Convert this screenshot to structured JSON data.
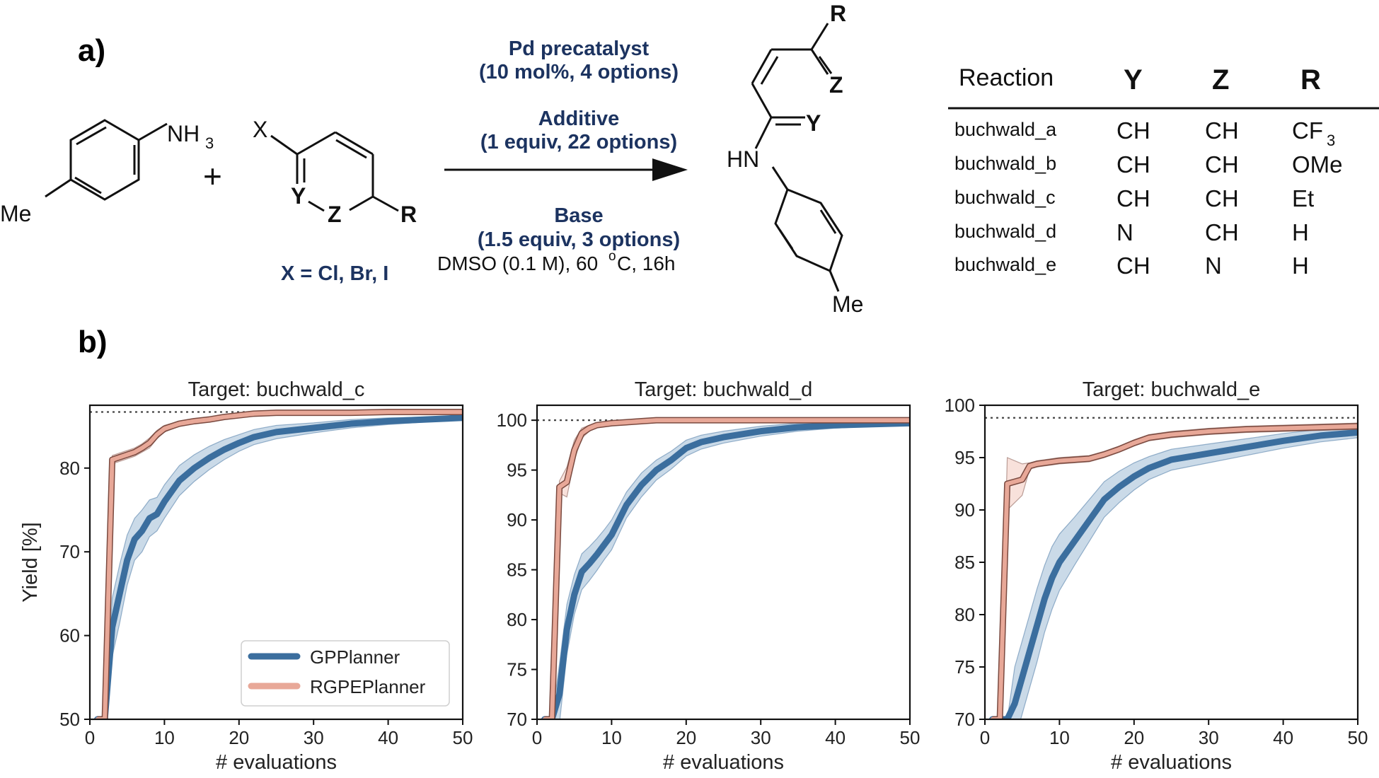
{
  "panel_a": {
    "label": "a)",
    "reactant_amine": {
      "me": "Me",
      "nh3": "NH",
      "nh3_sub": "3"
    },
    "plus": "+",
    "reactant_halide": {
      "x": "X",
      "y": "Y",
      "z": "Z",
      "r": "R",
      "note": "X = Cl, Br, I"
    },
    "conditions": {
      "pd_title": "Pd precatalyst",
      "pd_detail": "(10 mol%, 4 options)",
      "additive_title": "Additive",
      "additive_detail": "(1 equiv, 22 options)",
      "base_title": "Base",
      "base_detail": "(1.5 equiv, 3 options)",
      "solvent_pre": "DMSO (0.1 M), 60 ",
      "solvent_sup": "o",
      "solvent_post": "C, 16h"
    },
    "product": {
      "r": "R",
      "z": "Z",
      "y": "Y",
      "hn": "HN",
      "me": "Me"
    },
    "table": {
      "headers": [
        "Reaction",
        "Y",
        "Z",
        "R"
      ],
      "rows": [
        {
          "name": "buchwald_a",
          "y": "CH",
          "z": "CH",
          "r": "CF",
          "r_sub": "3"
        },
        {
          "name": "buchwald_b",
          "y": "CH",
          "z": "CH",
          "r": "OMe",
          "r_sub": ""
        },
        {
          "name": "buchwald_c",
          "y": "CH",
          "z": "CH",
          "r": "Et",
          "r_sub": ""
        },
        {
          "name": "buchwald_d",
          "y": "N",
          "z": "CH",
          "r": "H",
          "r_sub": ""
        },
        {
          "name": "buchwald_e",
          "y": "CH",
          "z": "N",
          "r": "H",
          "r_sub": ""
        }
      ]
    }
  },
  "panel_b": {
    "label": "b)",
    "legend": [
      {
        "name": "GPPlanner",
        "color": "#3b6e9e"
      },
      {
        "name": "RGPEPlanner",
        "color": "#e8a898"
      }
    ],
    "colors": {
      "gp": "#3b6e9e",
      "gp_band": "#9fbcd6",
      "rg_fill": "#e8a898",
      "rg_edge": "#7a4a40",
      "rg_band": "#f2c8be"
    }
  },
  "chart_data": [
    {
      "type": "line",
      "title": "Target: buchwald_c",
      "xlabel": "# evaluations",
      "ylabel": "Yield [%]",
      "xlim": [
        0,
        50
      ],
      "ylim": [
        50,
        87.5
      ],
      "xticks": [
        0,
        10,
        20,
        30,
        40,
        50
      ],
      "yticks": [
        50,
        60,
        70,
        80
      ],
      "best_yield_line": 86.7,
      "legend_placement": "lower-right",
      "x": [
        1,
        2,
        3,
        4,
        5,
        6,
        7,
        8,
        9,
        10,
        12,
        14,
        16,
        18,
        20,
        22,
        25,
        30,
        35,
        40,
        45,
        50
      ],
      "series": [
        {
          "name": "GPPlanner",
          "values": [
            50,
            50,
            61,
            65,
            69,
            71.5,
            72.5,
            74,
            74.5,
            76,
            78.5,
            80,
            81.2,
            82.2,
            83,
            83.7,
            84.3,
            84.8,
            85.3,
            85.6,
            85.8,
            86
          ],
          "spread": [
            0,
            0,
            3.5,
            3.5,
            3,
            2.5,
            2.5,
            2.2,
            2,
            2,
            1.8,
            1.6,
            1.4,
            1.2,
            1,
            0.9,
            0.8,
            0.6,
            0.5,
            0.4,
            0.3,
            0.3
          ]
        },
        {
          "name": "RGPEPlanner",
          "values": [
            50,
            50,
            81,
            81.3,
            81.6,
            81.9,
            82.4,
            83,
            84,
            84.7,
            85.3,
            85.6,
            85.8,
            86.1,
            86.3,
            86.5,
            86.6,
            86.6,
            86.6,
            86.7,
            86.7,
            86.7
          ],
          "spread": [
            0,
            0,
            0.5,
            0.5,
            0.5,
            0.5,
            0.5,
            0.6,
            0.5,
            0.4,
            0.3,
            0.3,
            0.2,
            0.2,
            0.1,
            0.1,
            0.1,
            0.05,
            0.05,
            0.05,
            0.05,
            0.05
          ]
        }
      ]
    },
    {
      "type": "line",
      "title": "Target: buchwald_d",
      "xlabel": "# evaluations",
      "ylabel": "",
      "xlim": [
        0,
        50
      ],
      "ylim": [
        70,
        101.5
      ],
      "xticks": [
        0,
        10,
        20,
        30,
        40,
        50
      ],
      "yticks": [
        70,
        75,
        80,
        85,
        90,
        95,
        100
      ],
      "best_yield_line": 100,
      "x": [
        1,
        2,
        3,
        4,
        5,
        6,
        7,
        8,
        9,
        10,
        12,
        14,
        16,
        18,
        20,
        22,
        25,
        30,
        35,
        40,
        45,
        50
      ],
      "series": [
        {
          "name": "GPPlanner",
          "values": [
            70,
            70,
            72.5,
            79,
            82.5,
            84.8,
            85.6,
            86.5,
            87.5,
            88.5,
            91.5,
            93.5,
            95,
            96,
            97.2,
            97.8,
            98.3,
            98.9,
            99.3,
            99.5,
            99.6,
            99.7
          ],
          "spread": [
            0,
            0,
            3,
            2.5,
            2,
            1.8,
            1.7,
            1.6,
            1.5,
            1.5,
            1.3,
            1.2,
            1,
            0.9,
            0.8,
            0.7,
            0.6,
            0.5,
            0.4,
            0.3,
            0.2,
            0.2
          ]
        },
        {
          "name": "RGPEPlanner",
          "values": [
            70,
            70,
            93.3,
            93.8,
            97,
            98.7,
            99.2,
            99.5,
            99.6,
            99.7,
            99.8,
            99.9,
            100,
            100,
            100,
            100,
            100,
            100,
            100,
            100,
            100,
            100
          ],
          "spread": [
            0,
            0,
            0.6,
            1.5,
            1,
            0.5,
            0.3,
            0.2,
            0.1,
            0.1,
            0.05,
            0.05,
            0,
            0,
            0,
            0,
            0,
            0,
            0,
            0,
            0,
            0
          ]
        }
      ]
    },
    {
      "type": "line",
      "title": "Target: buchwald_e",
      "xlabel": "# evaluations",
      "ylabel": "",
      "xlim": [
        0,
        50
      ],
      "ylim": [
        70,
        100
      ],
      "xticks": [
        0,
        10,
        20,
        30,
        40,
        50
      ],
      "yticks": [
        70,
        75,
        80,
        85,
        90,
        95,
        100
      ],
      "best_yield_line": 98.8,
      "x": [
        1,
        2,
        3,
        4,
        5,
        6,
        7,
        8,
        9,
        10,
        12,
        14,
        16,
        18,
        20,
        22,
        25,
        30,
        35,
        40,
        45,
        50
      ],
      "series": [
        {
          "name": "GPPlanner",
          "values": [
            70,
            70,
            70,
            71.5,
            74,
            76.5,
            79,
            81.5,
            83.5,
            85,
            87,
            89,
            91,
            92.2,
            93.2,
            94,
            94.8,
            95.4,
            96,
            96.6,
            97.1,
            97.4
          ],
          "spread": [
            0,
            0,
            0,
            3.5,
            3.5,
            3.5,
            3.5,
            3.2,
            3,
            2.7,
            2.3,
            2,
            1.7,
            1.5,
            1.3,
            1.1,
            1,
            0.9,
            0.8,
            0.7,
            0.6,
            0.5
          ]
        },
        {
          "name": "RGPEPlanner",
          "values": [
            70,
            70,
            92.5,
            92.7,
            92.9,
            94.2,
            94.4,
            94.5,
            94.6,
            94.7,
            94.8,
            94.9,
            95.3,
            95.8,
            96.4,
            96.9,
            97.2,
            97.5,
            97.7,
            97.8,
            97.9,
            98
          ],
          "spread": [
            0,
            0,
            2.5,
            2,
            1.5,
            0.3,
            0.3,
            0.3,
            0.3,
            0.3,
            0.3,
            0.3,
            0.3,
            0.3,
            0.3,
            0.3,
            0.3,
            0.3,
            0.3,
            0.3,
            0.3,
            0.3
          ]
        }
      ]
    }
  ]
}
